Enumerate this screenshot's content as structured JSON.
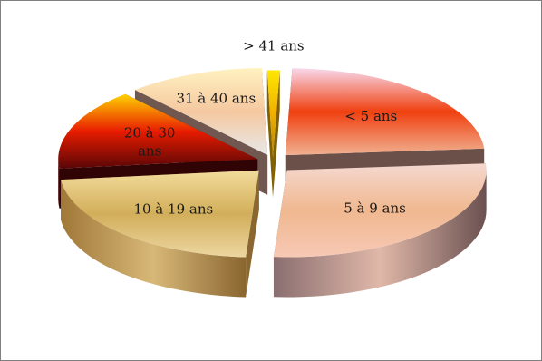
{
  "chart_data": {
    "type": "pie",
    "title": "",
    "categories": [
      "< 5 ans",
      "5 à 9 ans",
      "10 à 19 ans",
      "20 à 30 ans",
      "31 à 40 ans",
      "> 41 ans"
    ],
    "values": [
      23,
      27,
      22,
      15,
      11,
      1
    ],
    "colors": {
      "< 5 ans": [
        "#f8d9ec",
        "#f04010",
        "#f0b090"
      ],
      "5 à 9 ans": [
        "#f5d8d0",
        "#f0b890",
        "#f7c8b4"
      ],
      "10 à 19 ans": [
        "#f2dc9c",
        "#d2ae5a",
        "#ecd6a0"
      ],
      "20 à 30 ans": [
        "#ffd400",
        "#e81c00",
        "#5a0606"
      ],
      "31 à 40 ans": [
        "#fff2c0",
        "#f5c8a0",
        "#e8e8e8"
      ],
      "> 41 ans": [
        "#ffe600",
        "#f0b000",
        "#b08000"
      ]
    },
    "side_colors": {
      "< 5 ans": [
        "#9a7060",
        "#c8a090",
        "#6a5048"
      ],
      "5 à 9 ans": [
        "#8a6e70",
        "#e0b8a8",
        "#6a5050"
      ],
      "10 à 19 ans": [
        "#a07838",
        "#d8b878",
        "#8a6630"
      ],
      "20 à 30 ans": [
        "#300404",
        "#5a0808",
        "#300404"
      ],
      "31 à 40 ans": [
        "#806860",
        "#b09888",
        "#705850"
      ],
      "> 41 ans": [
        "#a08000",
        "#d0a800",
        "#806000"
      ]
    },
    "legend": "none",
    "label_placement": "inside",
    "style": "3d-exploded"
  }
}
